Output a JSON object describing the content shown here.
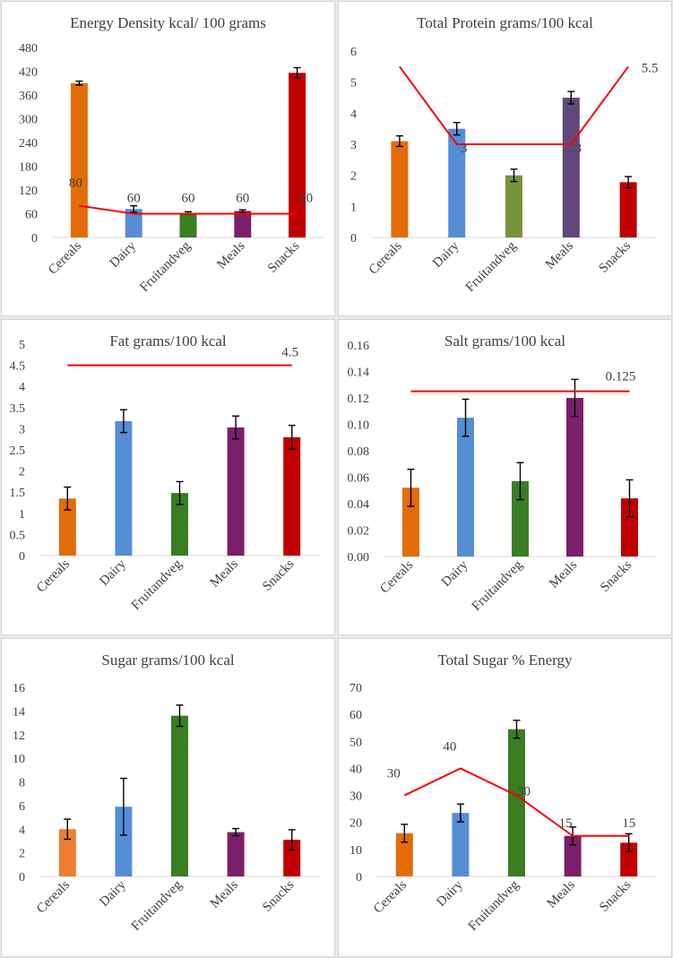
{
  "colors": {
    "cereals": "#E36C0A",
    "cereals_light": "#ED7D31",
    "dairy": "#558ED5",
    "fruitandveg": "#3A7D22",
    "fruitandveg_olive": "#77933C",
    "meals_purple": "#7B1F6B",
    "meals_violet": "#60497A",
    "snacks": "#C00000",
    "reference_line": "#FF0000",
    "axis_text": "#404040"
  },
  "chart_data": [
    {
      "type": "bar",
      "title": "Energy Density kcal/ 100 grams",
      "categories": [
        "Cereals",
        "Dairy",
        "Fruitandveg",
        "Meals",
        "Snacks"
      ],
      "values": [
        390,
        72,
        62,
        67,
        416
      ],
      "errors": [
        5,
        8,
        3,
        3,
        13
      ],
      "bar_colors": [
        "#E36C0A",
        "#558ED5",
        "#3A7D22",
        "#7B1F6B",
        "#C00000"
      ],
      "ylim": [
        0,
        480
      ],
      "yticks": [
        "0",
        "60",
        "120",
        "180",
        "240",
        "300",
        "360",
        "420",
        "480"
      ],
      "reference": {
        "name": "recommendation",
        "values": [
          80,
          60,
          60,
          60,
          60
        ],
        "labels": [
          "80",
          "60",
          "60",
          "60",
          "60"
        ]
      }
    },
    {
      "type": "bar",
      "title": "Total Protein grams/100 kcal",
      "categories": [
        "Cereals",
        "Dairy",
        "Fruitandveg",
        "Meals",
        "Snacks"
      ],
      "values": [
        3.1,
        3.5,
        2.0,
        4.5,
        1.78
      ],
      "errors": [
        0.17,
        0.2,
        0.2,
        0.2,
        0.18
      ],
      "bar_colors": [
        "#E36C0A",
        "#558ED5",
        "#77933C",
        "#60497A",
        "#C00000"
      ],
      "ylim": [
        0,
        6
      ],
      "yticks": [
        "0",
        "1",
        "2",
        "3",
        "4",
        "5",
        "6"
      ],
      "reference": {
        "name": "recommendation",
        "values": [
          5.5,
          3,
          3,
          3,
          5.5
        ],
        "labels": [
          "",
          "3",
          "",
          "3",
          "5.5"
        ]
      }
    },
    {
      "type": "bar",
      "title": "Fat grams/100 kcal",
      "categories": [
        "Cereals",
        "Dairy",
        "Fruitandveg",
        "Meals",
        "Snacks"
      ],
      "values": [
        1.35,
        3.18,
        1.48,
        3.03,
        2.8
      ],
      "errors": [
        0.27,
        0.27,
        0.27,
        0.27,
        0.28
      ],
      "bar_colors": [
        "#E36C0A",
        "#558ED5",
        "#3A7D22",
        "#7B1F6B",
        "#C00000"
      ],
      "ylim": [
        0,
        5
      ],
      "yticks": [
        "0",
        "0.5",
        "1",
        "1.5",
        "2",
        "2.5",
        "3",
        "3.5",
        "4",
        "4.5",
        "5"
      ],
      "reference": {
        "name": "recommendation",
        "values": [
          4.5,
          4.5,
          4.5,
          4.5,
          4.5
        ],
        "labels": [
          "",
          "",
          "",
          "",
          "4.5"
        ]
      }
    },
    {
      "type": "bar",
      "title": "Salt grams/100 kcal",
      "categories": [
        "Cereals",
        "Dairy",
        "Fruitandveg",
        "Meals",
        "Snacks"
      ],
      "values": [
        0.052,
        0.105,
        0.057,
        0.12,
        0.044
      ],
      "errors": [
        0.014,
        0.014,
        0.014,
        0.014,
        0.014
      ],
      "bar_colors": [
        "#E36C0A",
        "#558ED5",
        "#3A7D22",
        "#7B1F6B",
        "#C00000"
      ],
      "ylim": [
        0,
        0.16
      ],
      "yticks": [
        "0.00",
        "0.02",
        "0.04",
        "0.06",
        "0.08",
        "0.10",
        "0.12",
        "0.14",
        "0.16"
      ],
      "reference": {
        "name": "recommendation",
        "values": [
          0.125,
          0.125,
          0.125,
          0.125,
          0.125
        ],
        "labels": [
          "",
          "",
          "",
          "",
          "0.125"
        ]
      }
    },
    {
      "type": "bar",
      "title": "Sugar grams/100 kcal",
      "categories": [
        "Cereals",
        "Dairy",
        "Fruitandveg",
        "Meals",
        "Snacks"
      ],
      "values": [
        4.0,
        5.9,
        13.6,
        3.75,
        3.1
      ],
      "errors": [
        0.85,
        2.4,
        0.9,
        0.3,
        0.85
      ],
      "bar_colors": [
        "#ED7D31",
        "#558ED5",
        "#3A7D22",
        "#7B1F6B",
        "#C00000"
      ],
      "ylim": [
        0,
        16
      ],
      "yticks": [
        "0",
        "2",
        "4",
        "6",
        "8",
        "10",
        "12",
        "14",
        "16"
      ]
    },
    {
      "type": "bar",
      "title": "Total Sugar % Energy",
      "categories": [
        "Cereals",
        "Dairy",
        "Fruitandveg",
        "Meals",
        "Snacks"
      ],
      "values": [
        16,
        23.5,
        54.5,
        15,
        12.5
      ],
      "errors": [
        3.3,
        3.3,
        3.3,
        3.3,
        3.3
      ],
      "bar_colors": [
        "#E36C0A",
        "#558ED5",
        "#3A7D22",
        "#7B1F6B",
        "#C00000"
      ],
      "ylim": [
        0,
        70
      ],
      "yticks": [
        "0",
        "10",
        "20",
        "30",
        "40",
        "50",
        "60",
        "70"
      ],
      "reference": {
        "name": "recommendation",
        "values": [
          30,
          40,
          30,
          15,
          15
        ],
        "labels": [
          "30",
          "40",
          "30",
          "15",
          "15"
        ]
      }
    }
  ]
}
